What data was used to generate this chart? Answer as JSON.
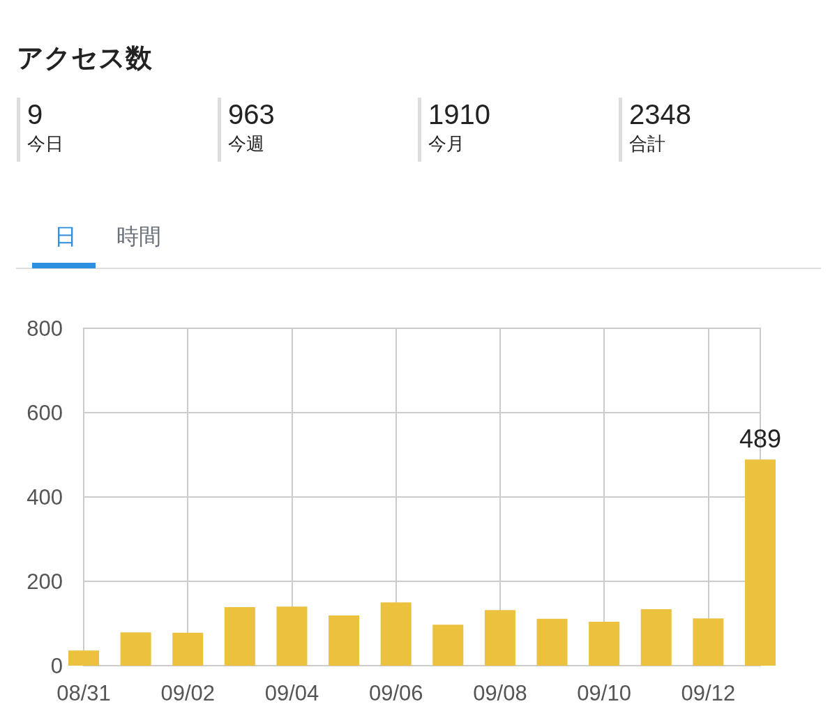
{
  "chart_data": {
    "type": "bar",
    "title": "アクセス数",
    "annotations": [
      "9",
      "今日",
      "963",
      "今週",
      "1910",
      "今月",
      "2348",
      "合計",
      "日",
      "時間"
    ],
    "categories": [
      "08/31",
      null,
      "09/02",
      null,
      "09/04",
      null,
      "09/06",
      null,
      "09/08",
      null,
      "09/10",
      null,
      "09/12",
      null
    ],
    "values": [
      36,
      79,
      78,
      139,
      140,
      119,
      150,
      97,
      132,
      111,
      104,
      134,
      112,
      489
    ],
    "value_labels": [
      null,
      null,
      null,
      null,
      null,
      null,
      null,
      null,
      null,
      null,
      null,
      null,
      null,
      "489"
    ],
    "color": "#ebc13d",
    "ylim": [
      0,
      800
    ],
    "yticks": [
      0,
      200,
      400,
      600,
      800
    ],
    "grid": true
  }
}
